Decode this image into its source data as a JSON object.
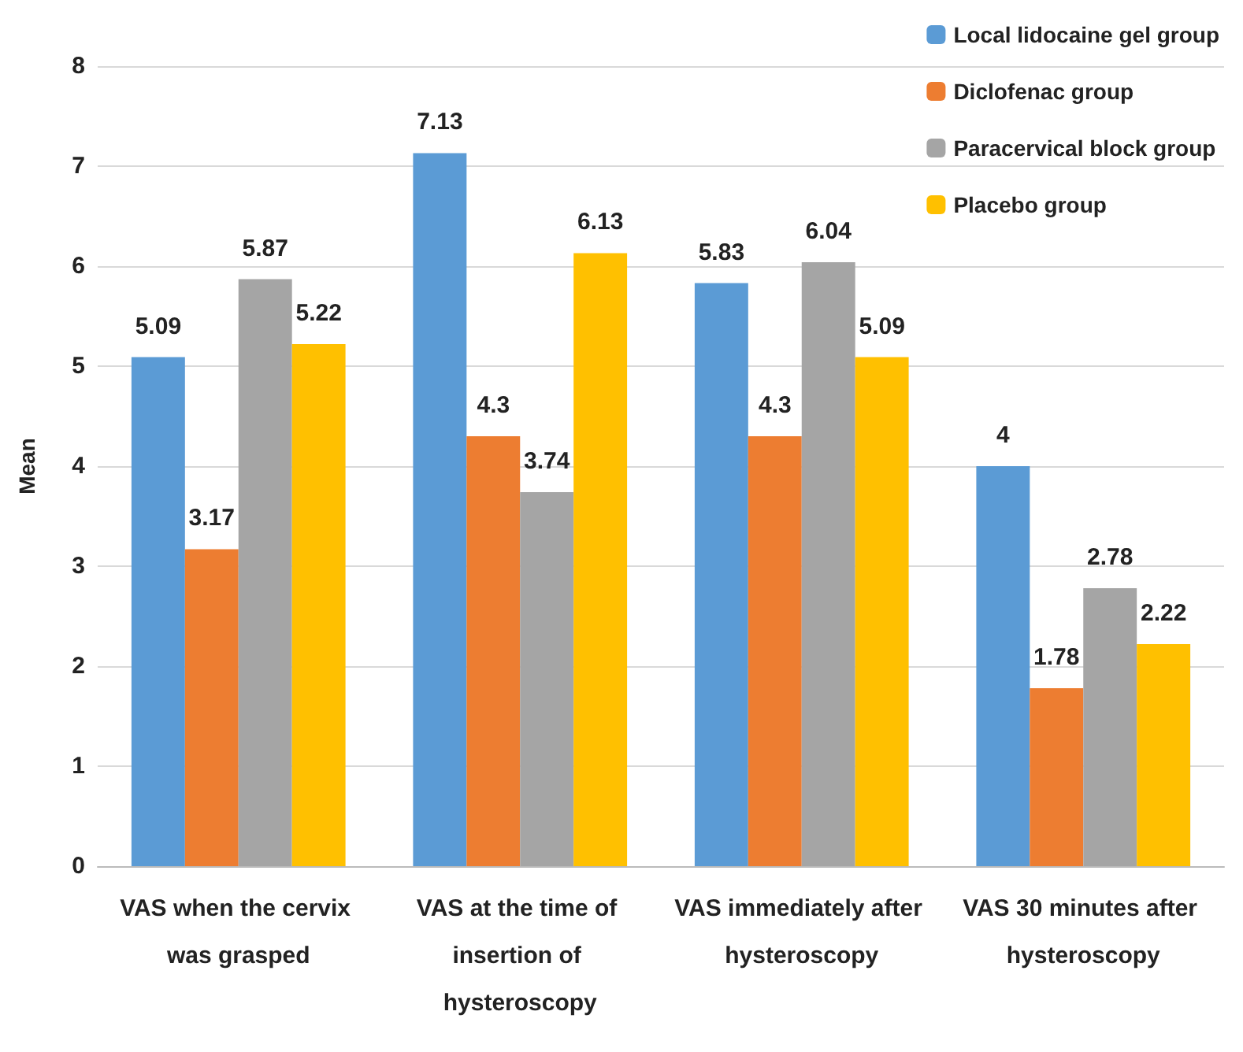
{
  "chart_data": {
    "type": "bar",
    "ylabel": "Mean",
    "categories": [
      "VAS when the cervix was grasped",
      "VAS at the time of insertion of hysteroscopy",
      "VAS immediately after hysteroscopy",
      "VAS 30 minutes after hysteroscopy"
    ],
    "series": [
      {
        "name": "Local lidocaine gel group",
        "color": "#5b9bd5",
        "values": [
          5.09,
          7.13,
          5.83,
          4
        ]
      },
      {
        "name": "Diclofenac group",
        "color": "#ed7d31",
        "values": [
          3.17,
          4.3,
          4.3,
          1.78
        ]
      },
      {
        "name": "Paracervical block group",
        "color": "#a5a5a5",
        "values": [
          5.87,
          3.74,
          6.04,
          2.78
        ]
      },
      {
        "name": "Placebo group",
        "color": "#ffc000",
        "values": [
          5.22,
          6.13,
          5.09,
          2.22
        ]
      }
    ],
    "ylim": [
      0,
      8
    ],
    "yticks": [
      0,
      1,
      2,
      3,
      4,
      5,
      6,
      7,
      8
    ],
    "grid": "y",
    "legend": "top right",
    "data_labels": true
  }
}
